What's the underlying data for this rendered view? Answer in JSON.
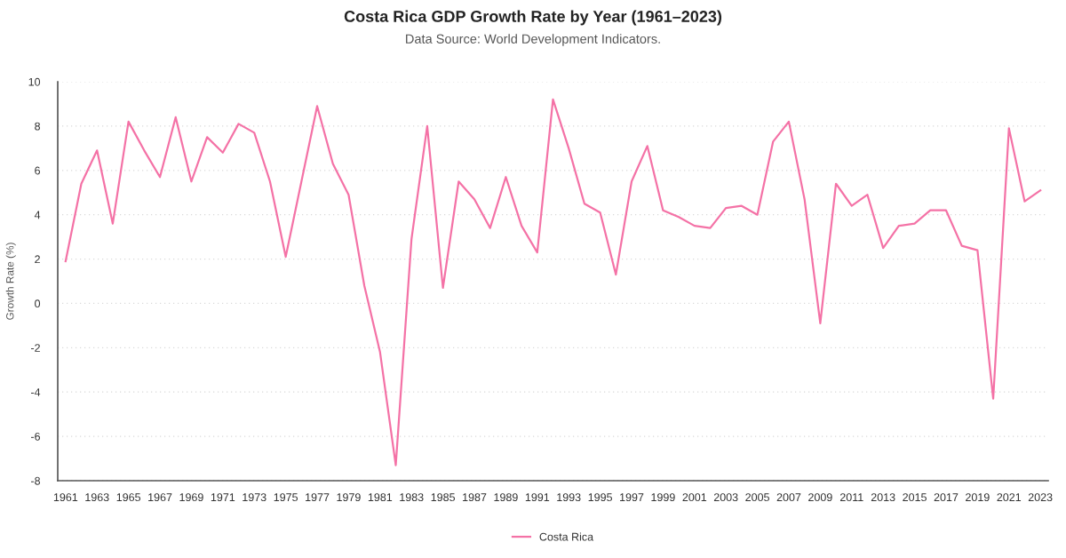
{
  "chart_data": {
    "type": "line",
    "title": "Costa Rica GDP Growth Rate by Year (1961–2023)",
    "subtitle": "Data Source: World Development Indicators.",
    "ylabel": "Growth Rate (%)",
    "categories": [
      "1961",
      null,
      "1963",
      null,
      "1965",
      null,
      "1967",
      null,
      "1969",
      null,
      "1971",
      null,
      "1973",
      null,
      "1975",
      null,
      "1977",
      null,
      "1979",
      null,
      "1981",
      null,
      "1983",
      null,
      "1985",
      null,
      "1987",
      null,
      "1989",
      null,
      "1991",
      null,
      "1993",
      null,
      "1995",
      null,
      "1997",
      null,
      "1999",
      null,
      "2001",
      null,
      "2003",
      null,
      "2005",
      null,
      "2007",
      null,
      "2009",
      null,
      "2011",
      null,
      "2013",
      null,
      "2015",
      null,
      "2017",
      null,
      "2019",
      null,
      "2021",
      null,
      "2023"
    ],
    "series": [
      {
        "name": "Costa Rica",
        "color": "#f472a6",
        "values": [
          1.9,
          5.4,
          6.9,
          3.6,
          8.2,
          6.9,
          5.7,
          8.4,
          5.5,
          7.5,
          6.8,
          8.1,
          7.7,
          5.5,
          2.1,
          5.5,
          8.9,
          6.3,
          4.9,
          0.8,
          -2.2,
          -7.3,
          2.9,
          8.0,
          0.7,
          5.5,
          4.7,
          3.4,
          5.7,
          3.5,
          2.3,
          9.2,
          7.0,
          4.5,
          4.1,
          1.3,
          5.5,
          7.1,
          4.2,
          3.9,
          3.5,
          3.4,
          4.3,
          4.4,
          4.0,
          7.3,
          8.2,
          4.7,
          -0.9,
          5.4,
          4.4,
          4.9,
          2.5,
          3.5,
          3.6,
          4.2,
          4.2,
          2.6,
          2.4,
          -4.3,
          7.9,
          4.6,
          5.1
        ]
      }
    ],
    "ylim": [
      -8,
      10
    ],
    "yticks": [
      -8,
      -6,
      -4,
      -2,
      0,
      2,
      4,
      6,
      8,
      10
    ],
    "grid": "y",
    "legend": "bottom",
    "line_style": "solid"
  }
}
